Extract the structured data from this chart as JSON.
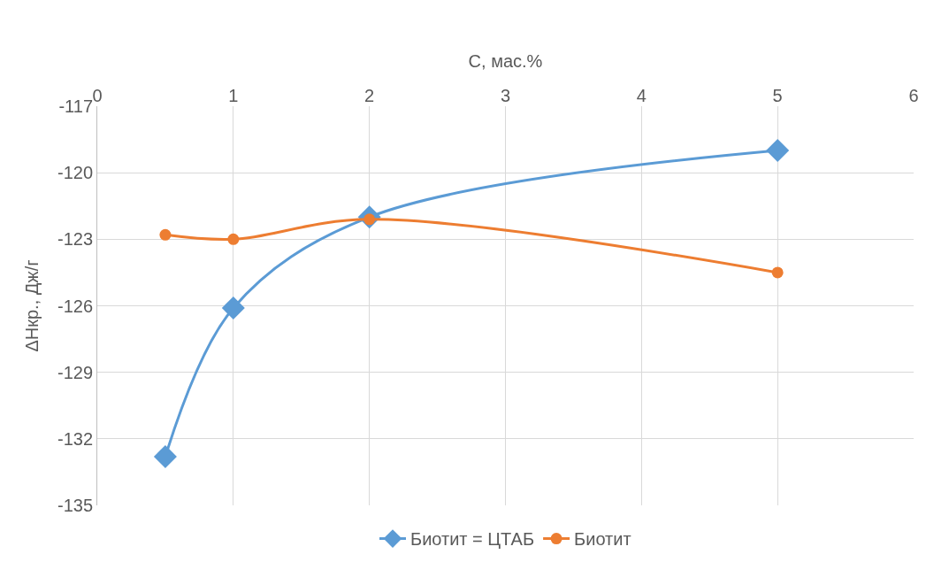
{
  "chart_data": {
    "type": "line",
    "xlabel": "C, мас.%",
    "ylabel": "ΔHкр., Дж/г",
    "x": [
      0.5,
      1,
      2,
      5
    ],
    "series": [
      {
        "name": "Биотит = ЦТАБ",
        "color": "#5b9bd5",
        "marker": "diamond",
        "values": [
          -132.8,
          -126.1,
          -122.0,
          -119.0
        ]
      },
      {
        "name": "Биотит",
        "color": "#ed7d31",
        "marker": "circle",
        "values": [
          -122.8,
          -123.0,
          -122.1,
          -124.5
        ]
      }
    ],
    "xlim": [
      0,
      6
    ],
    "xticks": [
      0,
      1,
      2,
      3,
      4,
      5,
      6
    ],
    "ylim": [
      -135,
      -117
    ],
    "yticks": [
      -117,
      -120,
      -123,
      -126,
      -129,
      -132,
      -135
    ],
    "grid": true,
    "legend": "bottom",
    "line_style": "solid"
  }
}
